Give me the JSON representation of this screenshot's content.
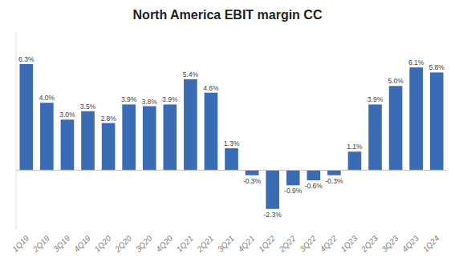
{
  "chart_data": {
    "type": "bar",
    "title": "North America EBIT margin CC",
    "categories": [
      "1Q19",
      "2Q19",
      "3Q19",
      "4Q19",
      "1Q20",
      "2Q20",
      "3Q20",
      "4Q20",
      "1Q21",
      "2Q21",
      "3Q21",
      "4Q21",
      "1Q22",
      "2Q22",
      "3Q22",
      "4Q22",
      "1Q23",
      "2Q23",
      "3Q23",
      "4Q23",
      "1Q24"
    ],
    "values": [
      6.3,
      4.0,
      3.0,
      3.5,
      2.8,
      3.9,
      3.8,
      3.9,
      5.4,
      4.6,
      1.3,
      -0.3,
      -2.3,
      -0.9,
      -0.6,
      -0.3,
      1.1,
      3.9,
      5.0,
      6.1,
      5.8
    ],
    "value_labels": [
      "6.3%",
      "4.0%",
      "3.0%",
      "3.5%",
      "2.8%",
      "3.9%",
      "3.8%",
      "3.9%",
      "5.4%",
      "4.6%",
      "1.3%",
      "-0.3%",
      "-2.3%",
      "-0.9%",
      "-0.6%",
      "-0.3%",
      "1.1%",
      "3.9%",
      "5.0%",
      "6.1%",
      "5.8%"
    ],
    "color": "#3A6BB5",
    "ylim": [
      -3.5,
      8.2
    ],
    "data_labels": true,
    "tick_labels": "x"
  }
}
